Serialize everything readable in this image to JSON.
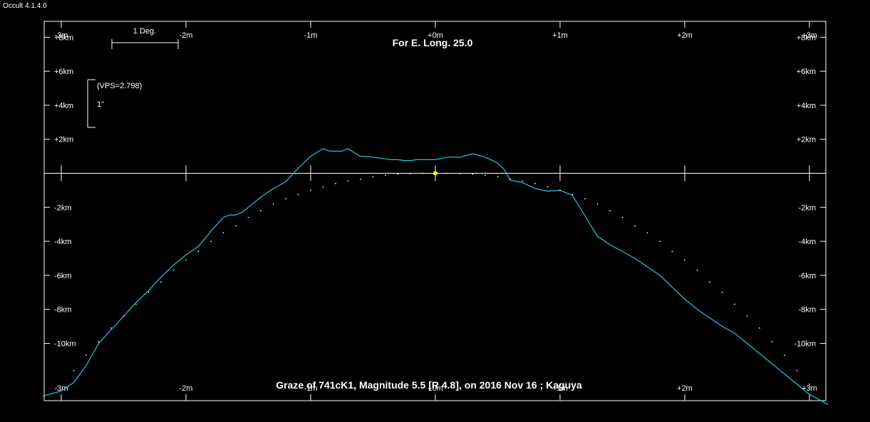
{
  "app_title": "Occult 4.1.4.0",
  "colors": {
    "background": "#000000",
    "frame": "#ffffff",
    "limb": "#22c8d8",
    "points": "#ffffff",
    "star": "#ffff00"
  },
  "chart_data": {
    "type": "line",
    "title": "For E. Long. 25.0",
    "subtitle": "Graze of  741cK1,  Magnitude 5.5 [R 4.8],  on 2016 Nov 16 ;  Kaguya",
    "scale_bar": {
      "label": "1 Deg."
    },
    "vps": {
      "label": "(VPS=2.798)",
      "arc_label": "1\""
    },
    "xlim": [
      -3.15,
      3.15
    ],
    "ylim": [
      -13.0,
      9.0
    ],
    "x_ticks": [
      -3,
      -2,
      -1,
      0,
      1,
      2,
      3
    ],
    "x_tick_labels": [
      "-3m",
      "-2m",
      "-1m",
      "+0m",
      "+1m",
      "+2m",
      "+3m"
    ],
    "y_ticks": [
      8,
      6,
      4,
      2,
      -2,
      -4,
      -6,
      -8,
      -10
    ],
    "y_tick_labels": [
      "+8km",
      "+6km",
      "+4km",
      "+2km",
      "-2km",
      "-4km",
      "-6km",
      "-8km",
      "-10km"
    ],
    "star_point": {
      "x": 0,
      "y": 0
    },
    "series": [
      {
        "style": "line",
        "x": [
          -3.15,
          -3.0,
          -2.9,
          -2.8,
          -2.7,
          -2.6,
          -2.5,
          -2.4,
          -2.3,
          -2.2,
          -2.1,
          -2.0,
          -1.9,
          -1.8,
          -1.7,
          -1.65,
          -1.6,
          -1.55,
          -1.5,
          -1.4,
          -1.3,
          -1.2,
          -1.1,
          -1.0,
          -0.9,
          -0.85,
          -0.8,
          -0.75,
          -0.7,
          -0.65,
          -0.6,
          -0.5,
          -0.45,
          -0.4,
          -0.35,
          -0.3,
          -0.25,
          -0.2,
          -0.15,
          -0.1,
          0.0,
          0.1,
          0.2,
          0.3,
          0.4,
          0.5,
          0.55,
          0.6,
          0.7,
          0.8,
          0.9,
          1.0,
          1.1,
          1.2,
          1.3,
          1.4,
          1.5,
          1.6,
          1.7,
          1.8,
          1.9,
          2.0,
          2.1,
          2.2,
          2.3,
          2.4,
          2.5,
          2.6,
          2.7,
          2.8,
          2.9,
          3.0,
          3.1,
          3.15
        ],
        "y": [
          -13.1,
          -12.8,
          -12.3,
          -11.3,
          -10.0,
          -9.2,
          -8.4,
          -7.6,
          -6.9,
          -6.1,
          -5.4,
          -4.8,
          -4.3,
          -3.4,
          -2.6,
          -2.45,
          -2.45,
          -2.3,
          -2.0,
          -1.4,
          -0.9,
          -0.5,
          0.3,
          1.0,
          1.45,
          1.3,
          1.3,
          1.3,
          1.45,
          1.2,
          1.0,
          0.95,
          0.9,
          0.85,
          0.8,
          0.8,
          0.75,
          0.75,
          0.8,
          0.8,
          0.8,
          0.95,
          0.95,
          1.15,
          0.95,
          0.6,
          0.25,
          -0.4,
          -0.55,
          -0.9,
          -1.05,
          -1.0,
          -1.3,
          -2.5,
          -3.7,
          -4.2,
          -4.6,
          -5.0,
          -5.5,
          -6.0,
          -6.7,
          -7.4,
          -8.0,
          -8.5,
          -9.0,
          -9.4,
          -10.0,
          -10.6,
          -11.2,
          -11.8,
          -12.4,
          -13.0,
          -13.4,
          -13.6
        ]
      },
      {
        "style": "points",
        "x": [
          -2.9,
          -2.8,
          -2.7,
          -2.6,
          -2.5,
          -2.4,
          -2.3,
          -2.2,
          -2.1,
          -2.0,
          -1.9,
          -1.8,
          -1.7,
          -1.6,
          -1.5,
          -1.4,
          -1.3,
          -1.2,
          -1.1,
          -1.0,
          -0.9,
          -0.8,
          -0.7,
          -0.6,
          -0.5,
          -0.4,
          -0.3,
          -0.2,
          -0.1,
          0.0,
          0.1,
          0.2,
          0.3,
          0.4,
          0.5,
          0.6,
          0.7,
          0.8,
          0.9,
          1.0,
          1.1,
          1.2,
          1.3,
          1.4,
          1.5,
          1.6,
          1.7,
          1.8,
          1.9,
          2.0,
          2.1,
          2.2,
          2.3,
          2.4,
          2.5,
          2.6,
          2.7,
          2.8,
          2.9,
          3.0
        ],
        "y": [
          -11.6,
          -10.7,
          -9.9,
          -9.1,
          -8.4,
          -7.7,
          -7.0,
          -6.4,
          -5.7,
          -5.1,
          -4.6,
          -4.0,
          -3.5,
          -3.1,
          -2.6,
          -2.2,
          -1.8,
          -1.5,
          -1.25,
          -1.0,
          -0.8,
          -0.6,
          -0.45,
          -0.35,
          -0.2,
          -0.12,
          -0.05,
          -0.02,
          0.0,
          0.0,
          0.0,
          -0.02,
          -0.05,
          -0.12,
          -0.2,
          -0.35,
          -0.45,
          -0.6,
          -0.8,
          -1.0,
          -1.25,
          -1.5,
          -1.8,
          -2.2,
          -2.6,
          -3.1,
          -3.5,
          -4.0,
          -4.6,
          -5.1,
          -5.7,
          -6.4,
          -7.0,
          -7.7,
          -8.4,
          -9.1,
          -9.9,
          -10.7,
          -11.6,
          -12.4
        ]
      }
    ]
  }
}
